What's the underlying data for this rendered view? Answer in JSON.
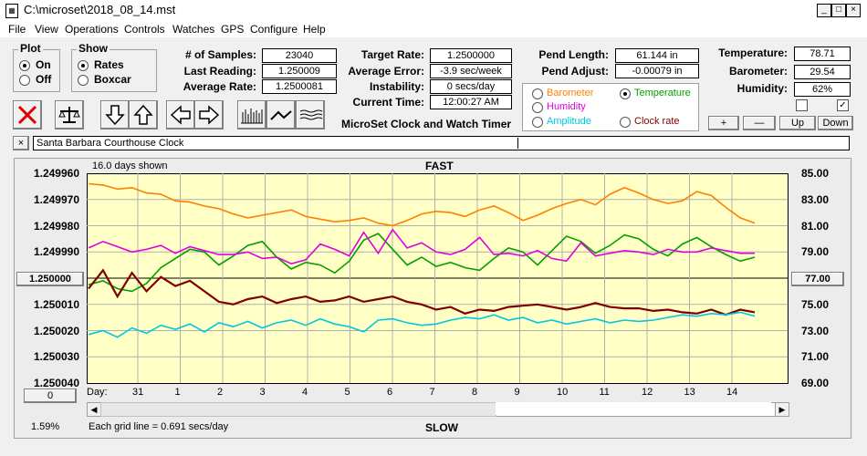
{
  "window": {
    "title": "C:\\microset\\2018_08_14.mst"
  },
  "menu": [
    "File",
    "View",
    "Operations",
    "Controls",
    "Watches",
    "GPS",
    "Configure",
    "Help"
  ],
  "plot_group": {
    "title": "Plot",
    "options": [
      "On",
      "Off"
    ],
    "selected": "On"
  },
  "show_group": {
    "title": "Show",
    "options": [
      "Rates",
      "Boxcar"
    ],
    "selected": "Rates"
  },
  "stats": {
    "samples_label": "# of Samples:",
    "samples": "23040",
    "last_label": "Last Reading:",
    "last": "1.250009",
    "avg_label": "Average Rate:",
    "avg": "1.2500081"
  },
  "rates": {
    "target_label": "Target Rate:",
    "target": "1.2500000",
    "error_label": "Average Error:",
    "error": "-3.9 sec/week",
    "instab_label": "Instability:",
    "instab": "0 secs/day",
    "time_label": "Current Time:",
    "time": "12:00:27 AM"
  },
  "pend": {
    "length_label": "Pend Length:",
    "length": "61.144 in",
    "adjust_label": "Pend Adjust:",
    "adjust": "-0.00079 in"
  },
  "env": {
    "temp_label": "Temperature:",
    "temp": "78.71",
    "baro_label": "Barometer:",
    "baro": "29.54",
    "hum_label": "Humidity:",
    "hum": "62%"
  },
  "series_selector": [
    {
      "label": "Barometer",
      "color": "#ff8000",
      "selected": false
    },
    {
      "label": "Temperature",
      "color": "#00a000",
      "selected": true
    },
    {
      "label": "Humidity",
      "color": "#e000e0",
      "selected": false
    },
    {
      "label": "Clock rate",
      "color": "#800000",
      "selected": false
    },
    {
      "label": "Amplitude",
      "color": "#00c8e0",
      "selected": false
    }
  ],
  "app_caption": "MicroSet Clock and Watch Timer",
  "small_buttons": [
    "+",
    "—",
    "Up",
    "Down"
  ],
  "checkbox_states": [
    false,
    true
  ],
  "toolbar_icons": [
    "stop-icon",
    "balance-icon",
    "arrow-down-icon",
    "arrow-up-icon",
    "arrow-left-icon",
    "arrow-right-icon",
    "bar-graph-icon",
    "line-graph-icon",
    "wave-graph-icon"
  ],
  "clock_name": "Santa Barbara Courthouse Clock",
  "chart": {
    "days_shown": "16.0 days shown",
    "top_label": "FAST",
    "bottom_label": "SLOW",
    "center_value": "1.250000",
    "center_right": "77.00",
    "bottom_left_btn": "0",
    "grid_note": "Each grid line = 0.691 secs/day",
    "percent": "1.59%",
    "day_label": "Day:"
  },
  "chart_data": {
    "type": "line",
    "left_axis_ticks": [
      "1.249960",
      "1.249970",
      "1.249980",
      "1.249990",
      "1.250000",
      "1.250010",
      "1.250020",
      "1.250030",
      "1.250040"
    ],
    "right_axis_ticks": [
      "85.00",
      "83.00",
      "81.00",
      "79.00",
      "77.00",
      "75.00",
      "73.00",
      "71.00",
      "69.00"
    ],
    "x_ticks": [
      "31",
      "1",
      "2",
      "3",
      "4",
      "5",
      "6",
      "7",
      "8",
      "9",
      "10",
      "11",
      "12",
      "13",
      "14"
    ],
    "ylim": [
      1.24996,
      1.25004
    ],
    "right_ylim": [
      69,
      85
    ],
    "grid": true,
    "series": [
      {
        "name": "Barometer",
        "color": "#ff8000",
        "values": [
          84.2,
          84.1,
          83.8,
          83.9,
          83.5,
          83.4,
          82.9,
          82.8,
          82.5,
          82.3,
          81.9,
          81.6,
          81.8,
          82.0,
          82.2,
          81.7,
          81.5,
          81.3,
          81.4,
          81.6,
          81.2,
          81.0,
          81.4,
          81.9,
          82.1,
          82.0,
          81.7,
          82.2,
          82.5,
          82.0,
          81.4,
          81.8,
          82.3,
          82.7,
          83.0,
          82.6,
          83.4,
          83.9,
          83.5,
          83.0,
          82.7,
          82.9,
          83.6,
          83.3,
          82.4,
          81.6,
          81.2
        ]
      },
      {
        "name": "Temperature",
        "color": "#00a000",
        "values": [
          76.5,
          76.8,
          76.2,
          76.0,
          76.6,
          77.8,
          78.5,
          79.2,
          79.0,
          78.0,
          78.7,
          79.5,
          79.8,
          78.6,
          77.7,
          78.2,
          78.0,
          77.4,
          78.3,
          79.9,
          80.4,
          79.2,
          78.0,
          78.6,
          77.9,
          78.2,
          77.8,
          77.6,
          78.5,
          79.3,
          79.0,
          78.0,
          79.1,
          80.2,
          79.8,
          78.9,
          79.5,
          80.3,
          80.0,
          79.2,
          78.7,
          79.6,
          80.1,
          79.4,
          78.8,
          78.3,
          78.6
        ]
      },
      {
        "name": "Humidity",
        "color": "#e000e0",
        "values": [
          79.3,
          79.8,
          79.4,
          79.0,
          79.2,
          79.5,
          78.9,
          79.4,
          79.1,
          78.8,
          78.8,
          79.0,
          78.5,
          78.6,
          78.1,
          78.4,
          79.6,
          79.2,
          78.7,
          80.5,
          78.9,
          80.7,
          79.3,
          79.7,
          79.0,
          78.8,
          79.2,
          80.1,
          78.8,
          78.9,
          78.7,
          79.1,
          78.5,
          78.3,
          79.7,
          78.7,
          78.9,
          79.1,
          79.0,
          78.8,
          79.2,
          79.0,
          79.0,
          79.3,
          79.1,
          78.9,
          78.9
        ]
      },
      {
        "name": "Clock rate",
        "color": "#800000",
        "values": [
          1.250004,
          1.249997,
          1.250007,
          1.249998,
          1.250005,
          1.2499995,
          1.250003,
          1.250001,
          1.250005,
          1.250009,
          1.25001,
          1.250008,
          1.250007,
          1.2500095,
          1.250008,
          1.250007,
          1.250009,
          1.2500085,
          1.250007,
          1.250009,
          1.250008,
          1.250007,
          1.250009,
          1.25001,
          1.250012,
          1.250011,
          1.2500135,
          1.250012,
          1.2500125,
          1.250011,
          1.2500105,
          1.25001,
          1.250011,
          1.250012,
          1.250011,
          1.2500095,
          1.250011,
          1.2500115,
          1.2500115,
          1.2500125,
          1.250012,
          1.250013,
          1.2500135,
          1.250012,
          1.250014,
          1.250012,
          1.250013
        ]
      },
      {
        "name": "Amplitude",
        "color": "#00c8e0",
        "values": [
          72.7,
          73.0,
          72.5,
          73.2,
          72.8,
          73.4,
          73.1,
          73.5,
          72.9,
          73.6,
          73.3,
          73.7,
          73.2,
          73.6,
          73.8,
          73.4,
          73.9,
          73.5,
          73.3,
          72.9,
          73.8,
          73.9,
          73.6,
          73.4,
          73.5,
          73.8,
          74.0,
          73.9,
          74.2,
          73.8,
          74.0,
          73.6,
          73.8,
          73.5,
          73.7,
          73.9,
          73.6,
          73.8,
          73.7,
          73.8,
          74.0,
          74.2,
          74.1,
          74.3,
          74.2,
          74.4,
          74.1
        ]
      }
    ]
  }
}
